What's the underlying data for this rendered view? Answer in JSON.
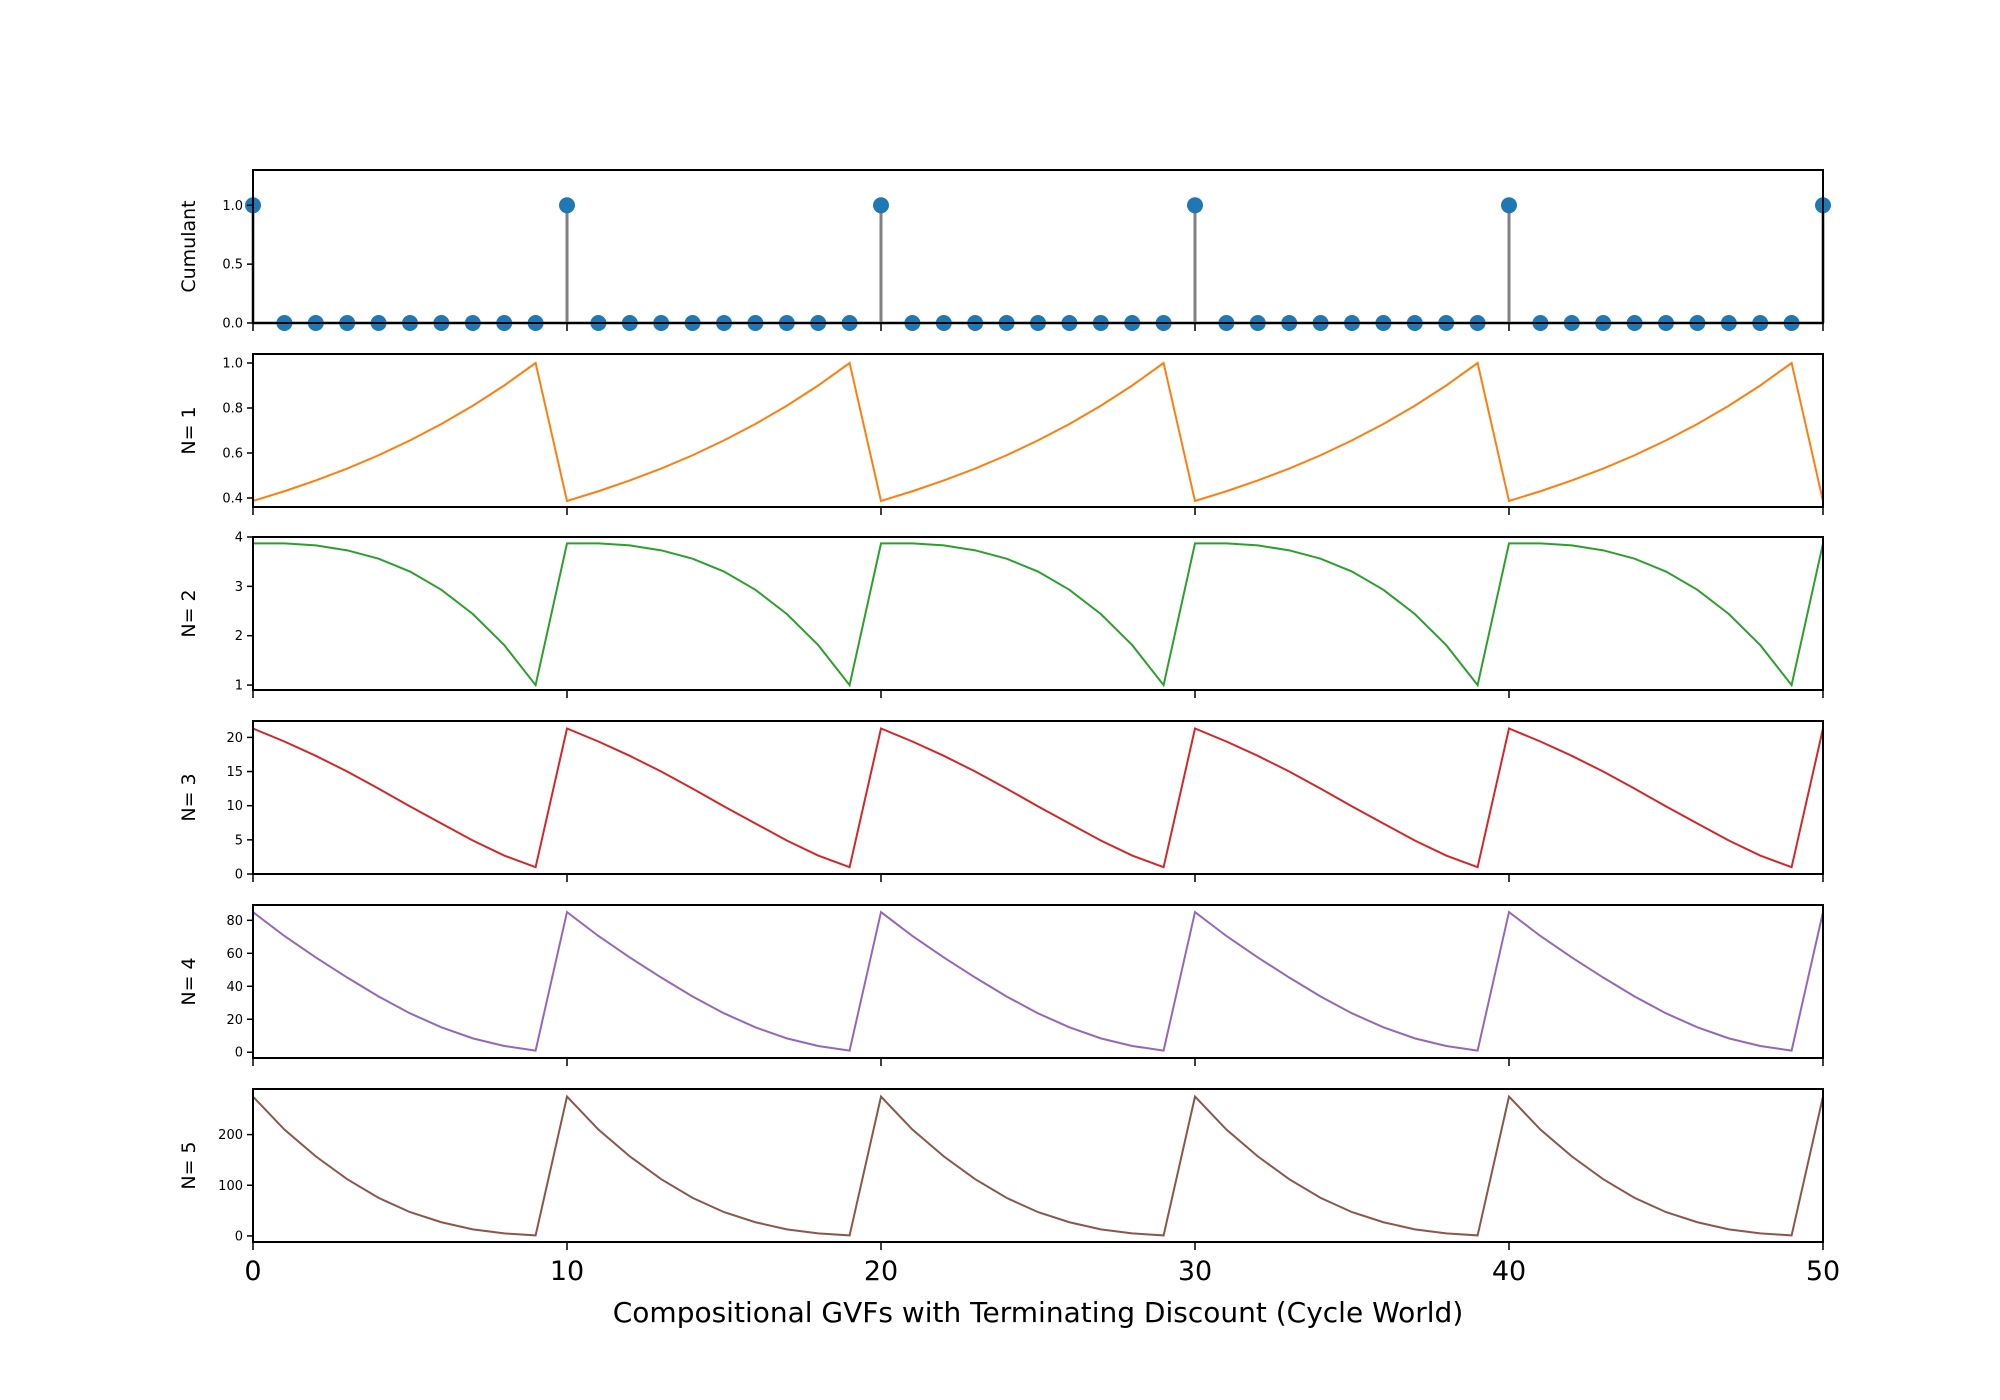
{
  "chart_data": {
    "type": "line",
    "xlabel": "Compositional GVFs with Terminating Discount (Cycle World)",
    "xlim": [
      0,
      50
    ],
    "xticks": [
      0,
      10,
      20,
      30,
      40,
      50
    ],
    "x": [
      0,
      1,
      2,
      3,
      4,
      5,
      6,
      7,
      8,
      9,
      10,
      11,
      12,
      13,
      14,
      15,
      16,
      17,
      18,
      19,
      20,
      21,
      22,
      23,
      24,
      25,
      26,
      27,
      28,
      29,
      30,
      31,
      32,
      33,
      34,
      35,
      36,
      37,
      38,
      39,
      40,
      41,
      42,
      43,
      44,
      45,
      46,
      47,
      48,
      49,
      50
    ],
    "panels": [
      {
        "ylabel": "Cumulant",
        "kind": "stem",
        "color": "#1f77b4",
        "stem_color": "#808080",
        "ylim": [
          0,
          1.3
        ],
        "yticks": [
          0.0,
          0.5,
          1.0
        ],
        "ytick_labels": [
          "0.0",
          "0.5",
          "1.0"
        ],
        "values": [
          1,
          0,
          0,
          0,
          0,
          0,
          0,
          0,
          0,
          0,
          1,
          0,
          0,
          0,
          0,
          0,
          0,
          0,
          0,
          0,
          1,
          0,
          0,
          0,
          0,
          0,
          0,
          0,
          0,
          0,
          1,
          0,
          0,
          0,
          0,
          0,
          0,
          0,
          0,
          0,
          1,
          0,
          0,
          0,
          0,
          0,
          0,
          0,
          0,
          0,
          1
        ]
      },
      {
        "ylabel": "N= 1",
        "kind": "line",
        "color": "#ff7f0e",
        "ylim": [
          0.36,
          1.04
        ],
        "yticks": [
          0.4,
          0.6,
          0.8,
          1.0
        ],
        "ytick_labels": [
          "0.4",
          "0.6",
          "0.8",
          "1.0"
        ],
        "values": [
          0.387,
          0.43,
          0.478,
          0.531,
          0.59,
          0.656,
          0.729,
          0.81,
          0.9,
          1.0,
          0.387,
          0.43,
          0.478,
          0.531,
          0.59,
          0.656,
          0.729,
          0.81,
          0.9,
          1.0,
          0.387,
          0.43,
          0.478,
          0.531,
          0.59,
          0.656,
          0.729,
          0.81,
          0.9,
          1.0,
          0.387,
          0.43,
          0.478,
          0.531,
          0.59,
          0.656,
          0.729,
          0.81,
          0.9,
          1.0,
          0.387,
          0.43,
          0.478,
          0.531,
          0.59,
          0.656,
          0.729,
          0.81,
          0.9,
          1.0,
          0.387
        ]
      },
      {
        "ylabel": "N= 2",
        "kind": "line",
        "color": "#2ca02c",
        "ylim": [
          0.9,
          4.0
        ],
        "yticks": [
          1,
          2,
          3,
          4
        ],
        "ytick_labels": [
          "1",
          "2",
          "3",
          "4"
        ],
        "values": [
          3.87,
          3.87,
          3.83,
          3.73,
          3.56,
          3.3,
          2.93,
          2.44,
          1.81,
          1.0,
          3.87,
          3.87,
          3.83,
          3.73,
          3.56,
          3.3,
          2.93,
          2.44,
          1.81,
          1.0,
          3.87,
          3.87,
          3.83,
          3.73,
          3.56,
          3.3,
          2.93,
          2.44,
          1.81,
          1.0,
          3.87,
          3.87,
          3.83,
          3.73,
          3.56,
          3.3,
          2.93,
          2.44,
          1.81,
          1.0,
          3.87,
          3.87,
          3.83,
          3.73,
          3.56,
          3.3,
          2.93,
          2.44,
          1.81,
          1.0,
          3.87
        ]
      },
      {
        "ylabel": "N= 3",
        "kind": "line",
        "color": "#d62728",
        "ylim": [
          0,
          22.4
        ],
        "yticks": [
          0,
          5,
          10,
          15,
          20
        ],
        "ytick_labels": [
          "0",
          "5",
          "10",
          "15",
          "20"
        ],
        "values": [
          21.3,
          19.4,
          17.3,
          15.0,
          12.5,
          9.9,
          7.4,
          4.9,
          2.7,
          1.0,
          21.3,
          19.4,
          17.3,
          15.0,
          12.5,
          9.9,
          7.4,
          4.9,
          2.7,
          1.0,
          21.3,
          19.4,
          17.3,
          15.0,
          12.5,
          9.9,
          7.4,
          4.9,
          2.7,
          1.0,
          21.3,
          19.4,
          17.3,
          15.0,
          12.5,
          9.9,
          7.4,
          4.9,
          2.7,
          1.0,
          21.3,
          19.4,
          17.3,
          15.0,
          12.5,
          9.9,
          7.4,
          4.9,
          2.7,
          1.0,
          21.3
        ]
      },
      {
        "ylabel": "N= 4",
        "kind": "line",
        "color": "#9467bd",
        "ylim": [
          -3.5,
          89.3
        ],
        "yticks": [
          0,
          20,
          40,
          60,
          80
        ],
        "ytick_labels": [
          "0",
          "20",
          "40",
          "60",
          "80"
        ],
        "values": [
          85.0,
          70.5,
          57.5,
          45.3,
          33.8,
          23.6,
          15.1,
          8.4,
          3.8,
          1.0,
          85.0,
          70.5,
          57.5,
          45.3,
          33.8,
          23.6,
          15.1,
          8.4,
          3.8,
          1.0,
          85.0,
          70.5,
          57.5,
          45.3,
          33.8,
          23.6,
          15.1,
          8.4,
          3.8,
          1.0,
          85.0,
          70.5,
          57.5,
          45.3,
          33.8,
          23.6,
          15.1,
          8.4,
          3.8,
          1.0,
          85.0,
          70.5,
          57.5,
          45.3,
          33.8,
          23.6,
          15.1,
          8.4,
          3.8,
          1.0,
          85.0
        ]
      },
      {
        "ylabel": "N= 5",
        "kind": "line",
        "color": "#8c564b",
        "ylim": [
          -12,
          290
        ],
        "yticks": [
          0,
          100,
          200
        ],
        "ytick_labels": [
          "0",
          "100",
          "200"
        ],
        "values": [
          275,
          210,
          157,
          112,
          75,
          47,
          27,
          13,
          5,
          1,
          275,
          210,
          157,
          112,
          75,
          47,
          27,
          13,
          5,
          1,
          275,
          210,
          157,
          112,
          75,
          47,
          27,
          13,
          5,
          1,
          275,
          210,
          157,
          112,
          75,
          47,
          27,
          13,
          5,
          1,
          275,
          210,
          157,
          112,
          75,
          47,
          27,
          13,
          5,
          1,
          275
        ]
      }
    ]
  }
}
